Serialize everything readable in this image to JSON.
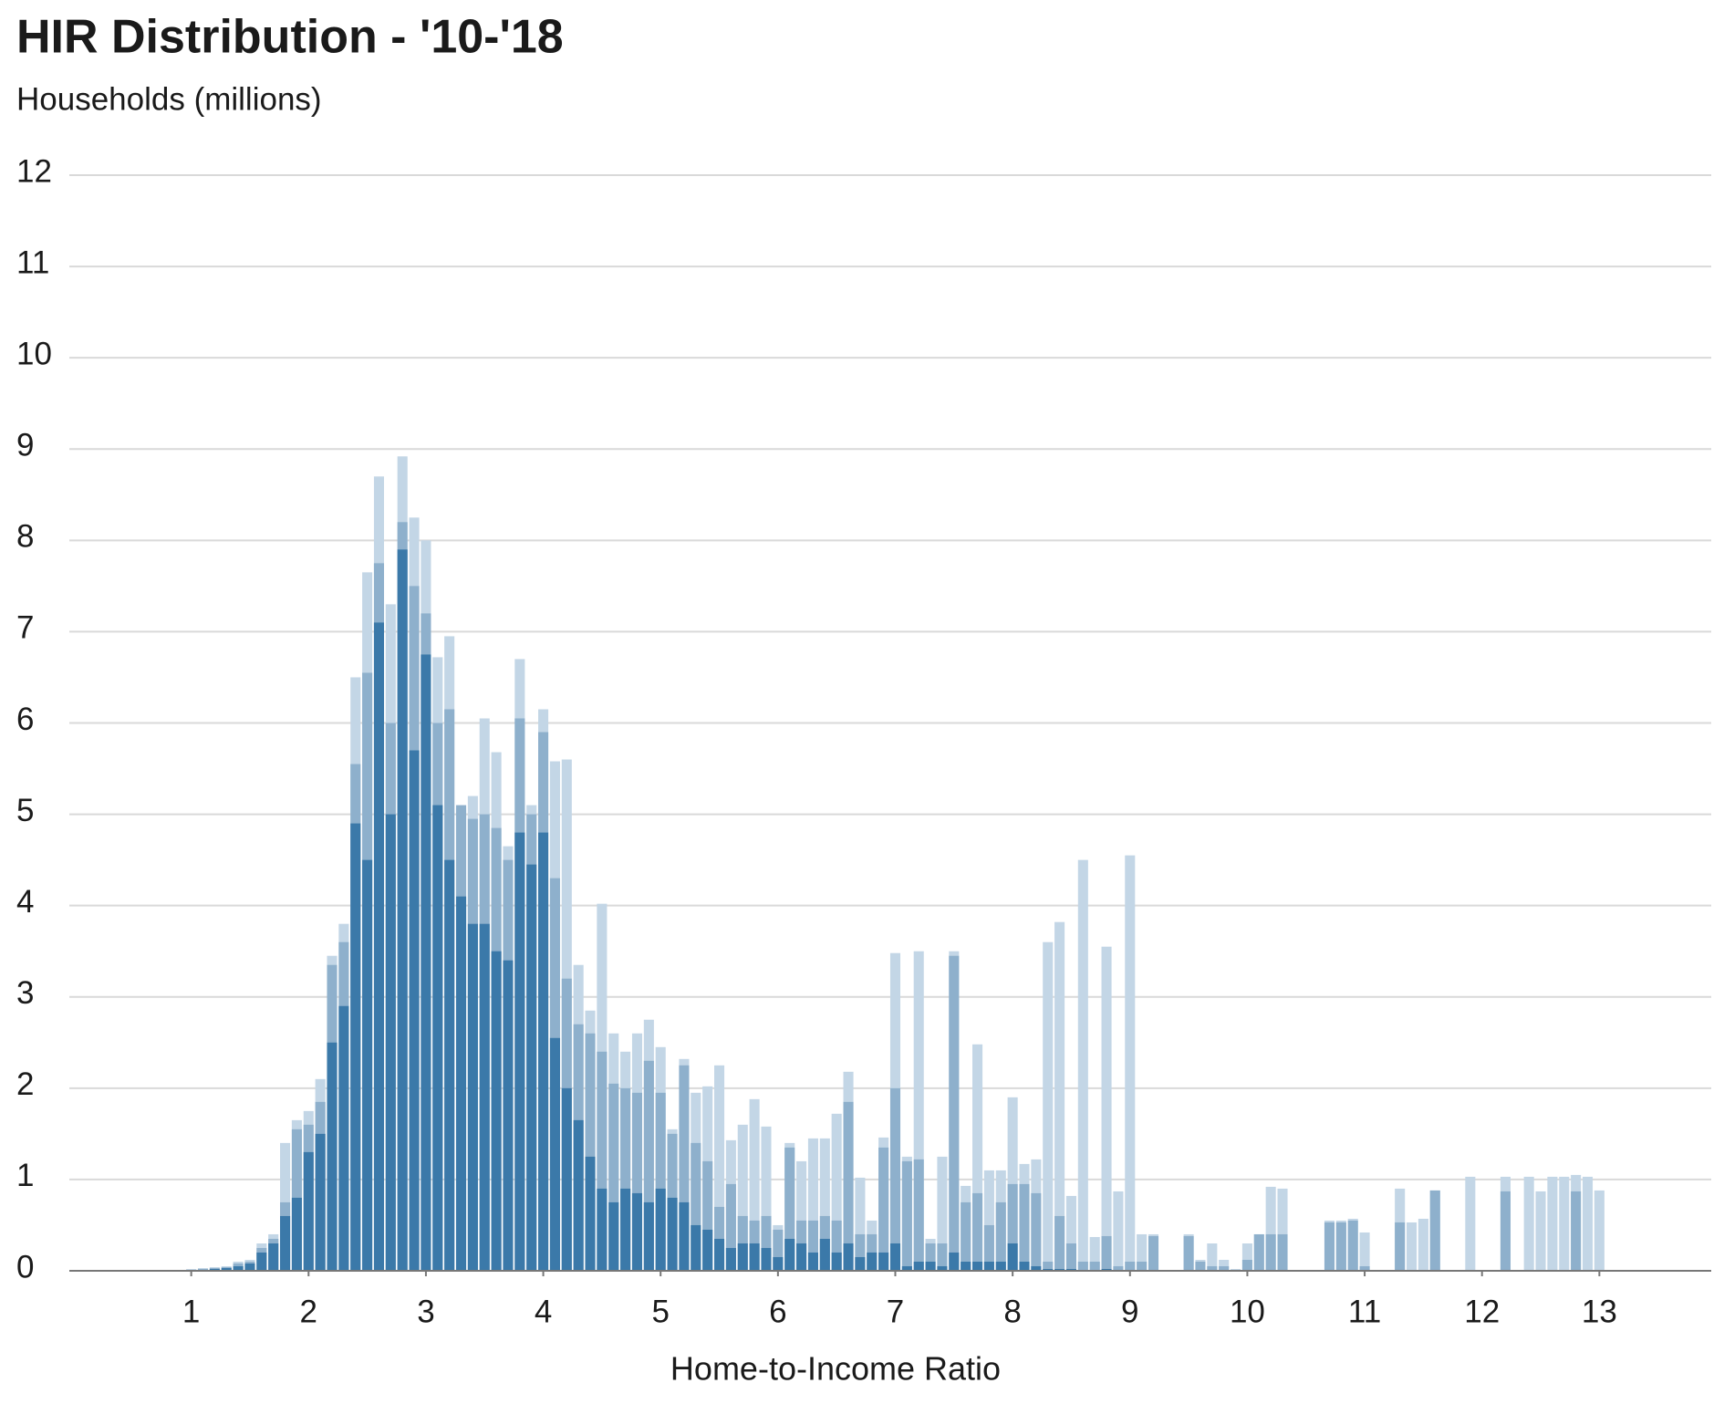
{
  "chart_data": {
    "type": "bar",
    "title": "HIR Distribution - '10-'18",
    "subtitle": "Households (millions)",
    "x_label": "Home-to-Income Ratio",
    "x": [
      1.0,
      1.1,
      1.2,
      1.3,
      1.4,
      1.5,
      1.6,
      1.7,
      1.8,
      1.9,
      2.0,
      2.1,
      2.2,
      2.3,
      2.4,
      2.5,
      2.6,
      2.7,
      2.8,
      2.9,
      3.0,
      3.1,
      3.2,
      3.3,
      3.4,
      3.5,
      3.6,
      3.7,
      3.8,
      3.9,
      4.0,
      4.1,
      4.2,
      4.3,
      4.4,
      4.5,
      4.6,
      4.7,
      4.8,
      4.9,
      5.0,
      5.1,
      5.2,
      5.3,
      5.4,
      5.5,
      5.6,
      5.7,
      5.8,
      5.9,
      6.0,
      6.1,
      6.2,
      6.3,
      6.4,
      6.5,
      6.6,
      6.7,
      6.8,
      6.9,
      7.0,
      7.1,
      7.2,
      7.3,
      7.4,
      7.5,
      7.6,
      7.7,
      7.8,
      7.9,
      8.0,
      8.1,
      8.2,
      8.3,
      8.4,
      8.5,
      8.6,
      8.7,
      8.8,
      8.9,
      9.0,
      9.1,
      9.2,
      9.3,
      9.4,
      9.5,
      9.6,
      9.7,
      9.8,
      9.9,
      10.0,
      10.1,
      10.2,
      10.3,
      10.4,
      10.5,
      10.6,
      10.7,
      10.8,
      10.9,
      11.0,
      11.1,
      11.2,
      11.3,
      11.4,
      11.5,
      11.6,
      11.7,
      11.8,
      11.9,
      12.0,
      12.1,
      12.2,
      12.3,
      12.4,
      12.5,
      12.6,
      12.7,
      12.8,
      12.9,
      13.0
    ],
    "series": [
      {
        "color": "#c3d6e6",
        "values": [
          0.02,
          0.03,
          0.04,
          0.05,
          0.1,
          0.12,
          0.3,
          0.4,
          1.4,
          1.65,
          1.75,
          2.1,
          3.45,
          3.8,
          6.5,
          7.65,
          8.7,
          7.3,
          8.92,
          8.25,
          8.0,
          6.72,
          6.95,
          5.05,
          5.2,
          6.05,
          5.68,
          4.65,
          6.7,
          5.1,
          6.15,
          5.58,
          5.6,
          3.35,
          2.85,
          4.02,
          2.6,
          2.4,
          2.6,
          2.75,
          2.45,
          1.55,
          2.32,
          1.95,
          2.02,
          2.25,
          1.43,
          1.6,
          1.88,
          1.58,
          0.5,
          1.4,
          1.2,
          1.45,
          1.45,
          1.72,
          2.18,
          1.02,
          0.55,
          1.46,
          3.48,
          1.25,
          3.5,
          0.35,
          1.25,
          3.5,
          0.93,
          2.48,
          1.1,
          1.1,
          1.9,
          1.17,
          1.22,
          3.6,
          3.82,
          0.82,
          4.5,
          0.37,
          3.55,
          0.87,
          4.55,
          0.4,
          0.4,
          0,
          0,
          0.4,
          0.12,
          0.3,
          0.12,
          0.02,
          0.3,
          0.4,
          0.92,
          0.9,
          0,
          0,
          0,
          0.55,
          0.55,
          0.57,
          0.42,
          0,
          0,
          0.9,
          0.53,
          0.57,
          0.88,
          0,
          0,
          1.03,
          0,
          0,
          1.03,
          0,
          1.03,
          0.87,
          1.03,
          1.03,
          1.05,
          1.03,
          0.88
        ]
      },
      {
        "color": "#8eb0cc",
        "values": [
          0.01,
          0.02,
          0.03,
          0.04,
          0.08,
          0.1,
          0.25,
          0.35,
          0.75,
          1.55,
          1.6,
          1.85,
          3.35,
          3.6,
          5.55,
          6.55,
          7.75,
          6.0,
          8.2,
          7.5,
          7.2,
          6.0,
          6.15,
          5.1,
          4.95,
          5.0,
          4.85,
          4.5,
          6.05,
          5.0,
          5.9,
          4.3,
          3.2,
          2.7,
          2.6,
          2.4,
          2.05,
          2.0,
          1.95,
          2.3,
          1.95,
          1.5,
          2.25,
          1.4,
          1.2,
          0.7,
          0.95,
          0.6,
          0.55,
          0.6,
          0.45,
          1.35,
          0.55,
          0.55,
          0.6,
          0.55,
          1.85,
          0.4,
          0.4,
          1.35,
          2.0,
          1.2,
          1.22,
          0.3,
          0.3,
          3.45,
          0.75,
          0.85,
          0.5,
          0.75,
          0.95,
          0.95,
          0.85,
          0.1,
          0.6,
          0.3,
          0.1,
          0.1,
          0.38,
          0.05,
          0.1,
          0.1,
          0.38,
          0,
          0,
          0.38,
          0.1,
          0.05,
          0.05,
          0,
          0.12,
          0.4,
          0.4,
          0.4,
          0,
          0,
          0,
          0.53,
          0.53,
          0.55,
          0.05,
          0,
          0,
          0.53,
          0,
          0,
          0.88,
          0,
          0,
          0,
          0,
          0,
          0.87,
          0,
          0,
          0,
          0,
          0,
          0.87,
          0,
          0
        ]
      },
      {
        "color": "#3b79a9",
        "values": [
          0.01,
          0.01,
          0.02,
          0.03,
          0.05,
          0.08,
          0.2,
          0.3,
          0.6,
          0.8,
          1.3,
          1.5,
          2.5,
          2.9,
          4.9,
          4.5,
          7.1,
          5.0,
          7.9,
          5.7,
          6.75,
          5.1,
          4.5,
          4.1,
          3.8,
          3.8,
          3.5,
          3.4,
          4.8,
          4.45,
          4.8,
          2.55,
          2.0,
          1.65,
          1.25,
          0.9,
          0.75,
          0.9,
          0.85,
          0.75,
          0.9,
          0.8,
          0.75,
          0.5,
          0.45,
          0.35,
          0.25,
          0.3,
          0.3,
          0.25,
          0.15,
          0.35,
          0.3,
          0.2,
          0.35,
          0.2,
          0.3,
          0.15,
          0.2,
          0.2,
          0.3,
          0.05,
          0.1,
          0.1,
          0.05,
          0.2,
          0.1,
          0.1,
          0.1,
          0.1,
          0.3,
          0.1,
          0.05,
          0.02,
          0.02,
          0.02,
          0.01,
          0.01,
          0.02,
          0.01,
          0.01,
          0,
          0.01,
          0,
          0,
          0.01,
          0,
          0,
          0,
          0,
          0,
          0,
          0,
          0,
          0,
          0,
          0,
          0,
          0,
          0,
          0,
          0,
          0,
          0,
          0,
          0,
          0,
          0,
          0,
          0,
          0,
          0,
          0,
          0,
          0,
          0,
          0,
          0,
          0,
          0,
          0
        ]
      }
    ],
    "xlim": [
      0,
      14
    ],
    "xticks": [
      1,
      2,
      3,
      4,
      5,
      6,
      7,
      8,
      9,
      10,
      11,
      12,
      13
    ],
    "ylim": [
      0,
      12
    ],
    "yticks": [
      0,
      1,
      2,
      3,
      4,
      5,
      6,
      7,
      8,
      9,
      10,
      11,
      12
    ],
    "grid": true
  }
}
